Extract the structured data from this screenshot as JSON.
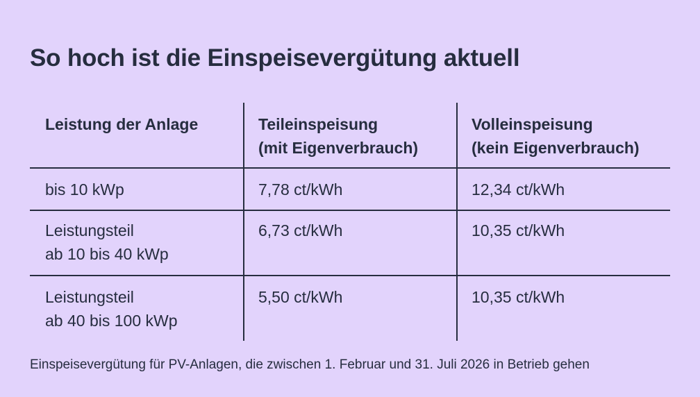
{
  "title": "So hoch ist die Einspeisevergütung aktuell",
  "table": {
    "headers": [
      "Leistung der Anlage",
      "Teileinspeisung\n(mit Eigenverbrauch)",
      "Volleinspeisung\n(kein Eigenverbrauch)"
    ],
    "rows": [
      [
        "bis 10 kWp",
        "7,78 ct/kWh",
        "12,34 ct/kWh"
      ],
      [
        "Leistungsteil\nab 10 bis 40 kWp",
        "6,73 ct/kWh",
        "10,35 ct/kWh"
      ],
      [
        "Leistungsteil\nab 40 bis 100 kWp",
        "5,50 ct/kWh",
        "10,35 ct/kWh"
      ]
    ]
  },
  "footnote": "Einspeisevergütung für PV-Anlagen, die zwischen 1. Februar und 31. Juli 2026 in Betrieb gehen",
  "colors": {
    "background": "#e2d3fc",
    "text": "#262d3f"
  }
}
